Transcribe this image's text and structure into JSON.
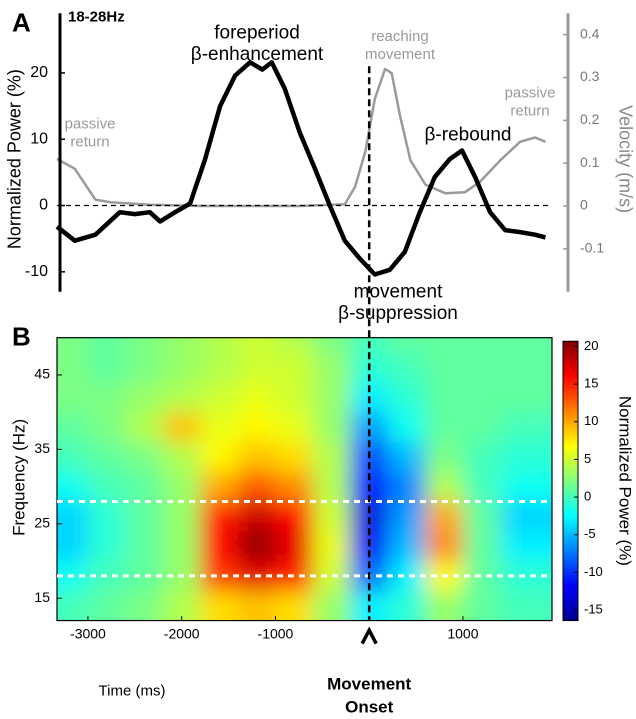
{
  "chart_data": [
    {
      "type": "line",
      "panel_label": "A",
      "title": "18-28Hz",
      "ylabel": "Normalized Power (%)",
      "y2label": "Velocity (m/s)",
      "xlim": [
        -3330,
        1950
      ],
      "ylim": [
        -13,
        29
      ],
      "yticks": [
        -10,
        0,
        10,
        20
      ],
      "y2lim": [
        -0.2,
        0.45
      ],
      "y2ticks": [
        -0.1,
        0,
        0.1,
        0.2,
        0.3,
        0.4
      ],
      "zero_line": true,
      "series": [
        {
          "color": "#000000",
          "x": [
            -3330,
            -3140,
            -2920,
            -2660,
            -2500,
            -2340,
            -2230,
            -2070,
            -1910,
            -1750,
            -1590,
            -1430,
            -1270,
            -1140,
            -1040,
            -900,
            -740,
            -580,
            -420,
            -260,
            -100,
            60,
            220,
            380,
            540,
            700,
            860,
            990,
            1130,
            1290,
            1450,
            1610,
            1770,
            1880
          ],
          "values": [
            -3.2,
            -5.3,
            -4.4,
            -1,
            -1.3,
            -1,
            -2.4,
            -1,
            0.3,
            7,
            15,
            19.6,
            21.6,
            20.5,
            21.6,
            17.6,
            11,
            5.6,
            0,
            -5.3,
            -8,
            -10.4,
            -9.7,
            -7,
            -1,
            4.3,
            7,
            8.3,
            4.3,
            -1,
            -3.7,
            -4,
            -4.4,
            -4.8
          ]
        },
        {
          "color": "#9a9a9a",
          "axis": "y2",
          "x": [
            -3330,
            -3140,
            -2920,
            -2760,
            -2340,
            -1800,
            -740,
            -260,
            -150,
            -40,
            60,
            170,
            240,
            330,
            440,
            600,
            810,
            1020,
            1180,
            1400,
            1610,
            1770,
            1880
          ],
          "values": [
            0.11,
            0.087,
            0.015,
            0.009,
            0.003,
            0,
            0,
            0.004,
            0.045,
            0.128,
            0.25,
            0.32,
            0.31,
            0.21,
            0.107,
            0.05,
            0.03,
            0.032,
            0.056,
            0.107,
            0.15,
            0.16,
            0.15
          ]
        }
      ],
      "annotations": [
        {
          "lines": [
            "foreperiod",
            "β-enhancement"
          ],
          "color": "#000000"
        },
        {
          "lines": [
            "reaching",
            "movement"
          ],
          "color": "#9a9a9a"
        },
        {
          "lines": [
            "passive",
            "return"
          ],
          "color": "#9a9a9a"
        },
        {
          "lines": [
            "passive",
            "return"
          ],
          "color": "#9a9a9a"
        },
        {
          "lines": [
            "β-rebound"
          ],
          "color": "#000000"
        },
        {
          "lines": [
            "movement",
            "β-suppression"
          ],
          "color": "#000000"
        }
      ]
    },
    {
      "type": "heatmap",
      "panel_label": "B",
      "xlabel": "Time (ms)",
      "ylabel": "Frequency (Hz)",
      "colorbar_label": "Normalized Power (%)",
      "xlim": [
        -3330,
        1950
      ],
      "xticks": [
        -3000,
        -2000,
        -1000,
        1000
      ],
      "ylim": [
        12,
        50
      ],
      "yticks": [
        15,
        25,
        35,
        45
      ],
      "x": [
        -3200,
        -2800,
        -2400,
        -2000,
        -1600,
        -1200,
        -800,
        -400,
        0,
        400,
        800,
        1200,
        1600
      ],
      "y": [
        50,
        46,
        42,
        38,
        34,
        30,
        26,
        22,
        18,
        14
      ],
      "z": [
        [
          2,
          1,
          2,
          3,
          4,
          5,
          4,
          2,
          0,
          1,
          1,
          1,
          1
        ],
        [
          2,
          1,
          2,
          3,
          4,
          5,
          5,
          3,
          -1,
          0,
          1,
          1,
          1
        ],
        [
          2,
          2,
          3,
          4,
          5,
          6,
          5,
          3,
          -3,
          -1,
          1,
          1,
          1
        ],
        [
          1,
          2,
          4,
          9,
          6,
          7,
          6,
          3,
          -6,
          -2,
          1,
          1,
          0
        ],
        [
          0,
          1,
          2,
          4,
          7,
          9,
          8,
          4,
          -9,
          -5,
          2,
          0,
          -1
        ],
        [
          -2,
          0,
          1,
          3,
          10,
          13,
          11,
          4,
          -11,
          -7,
          4,
          0,
          -2
        ],
        [
          -4,
          -1,
          1,
          3,
          15,
          18,
          16,
          5,
          -13,
          -6,
          10,
          1,
          -4
        ],
        [
          -4,
          -1,
          1,
          3,
          16,
          20,
          17,
          6,
          -12,
          -5,
          11,
          1,
          -3
        ],
        [
          -2,
          0,
          1,
          3,
          14,
          17,
          15,
          5,
          -8,
          -3,
          7,
          1,
          -1
        ],
        [
          0,
          1,
          2,
          4,
          8,
          9,
          8,
          3,
          -3,
          -1,
          3,
          1,
          0
        ]
      ],
      "colormap": "jet",
      "clim": [
        -16.4,
        20.7
      ],
      "cticks": [
        -15,
        -10,
        -5,
        0,
        5,
        10,
        15,
        20
      ],
      "band_lines": [
        18,
        28
      ],
      "event_time": 0,
      "event_label": [
        "Movement",
        "Onset"
      ]
    }
  ]
}
